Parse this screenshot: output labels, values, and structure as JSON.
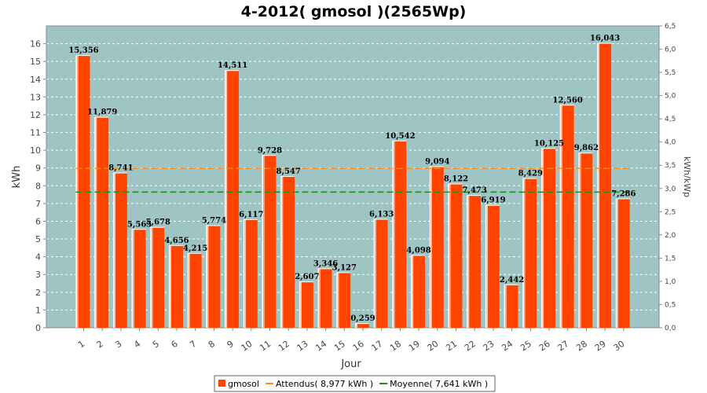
{
  "chart_data": {
    "type": "bar",
    "title": "4-2012( gmosol )(2565Wp)",
    "xlabel": "Jour",
    "ylabel": "kWh",
    "y2label": "kWh/kWp",
    "ylim": [
      0,
      17
    ],
    "y2lim": [
      0,
      6.5
    ],
    "yticks": [
      "0",
      "1",
      "2",
      "3",
      "4",
      "5",
      "6",
      "7",
      "8",
      "9",
      "10",
      "11",
      "12",
      "13",
      "14",
      "15",
      "16"
    ],
    "y2ticks": [
      "0,0",
      "0,5",
      "1,0",
      "1,5",
      "2,0",
      "2,5",
      "3,0",
      "3,5",
      "4,0",
      "4,5",
      "5,0",
      "5,5",
      "6,0",
      "6,5"
    ],
    "categories": [
      "1",
      "2",
      "3",
      "4",
      "5",
      "6",
      "7",
      "8",
      "9",
      "10",
      "11",
      "12",
      "13",
      "14",
      "15",
      "16",
      "17",
      "18",
      "19",
      "20",
      "21",
      "22",
      "23",
      "24",
      "25",
      "26",
      "27",
      "28",
      "29",
      "30"
    ],
    "series": [
      {
        "name": "gmosol",
        "color": "#ff4400",
        "values": [
          15.356,
          11.879,
          8.741,
          5.565,
          5.678,
          4.656,
          4.215,
          5.774,
          14.511,
          6.117,
          9.728,
          8.547,
          2.607,
          3.346,
          3.127,
          0.259,
          6.133,
          10.542,
          4.098,
          9.094,
          8.122,
          7.473,
          6.919,
          2.442,
          8.429,
          10.125,
          12.56,
          9.862,
          16.043,
          7.286
        ],
        "labels": [
          "15,356",
          "11,879",
          "8,741",
          "5,565",
          "5,678",
          "4,656",
          "4,215",
          "5,774",
          "14,511",
          "6,117",
          "9,728",
          "8,547",
          "2,607",
          "3,346",
          "3,127",
          "0,259",
          "6,133",
          "10,542",
          "4,098",
          "9,094",
          "8,122",
          "7,473",
          "6,919",
          "2,442",
          "8,429",
          "10,125",
          "12,560",
          "9,862",
          "16,043",
          "7,286"
        ]
      }
    ],
    "reference_lines": [
      {
        "name": "Attendus( 8,977 kWh )",
        "value": 8.977,
        "color": "#ff8c1a"
      },
      {
        "name": "Moyenne( 7,641 kWh )",
        "value": 7.641,
        "color": "#1a8c1a"
      }
    ],
    "grid": true,
    "legend_position": "bottom",
    "plot_background": "#9ec4c4"
  }
}
